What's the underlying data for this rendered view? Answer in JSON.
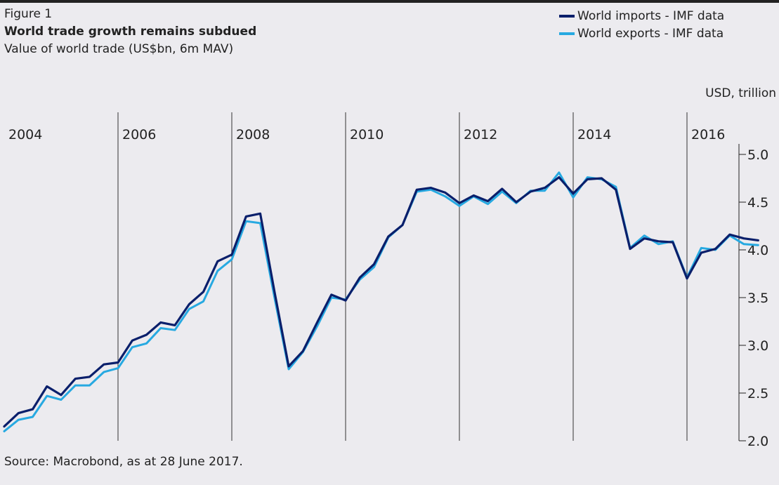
{
  "figure_label": "Figure 1",
  "title": "World trade growth remains subdued",
  "subtitle": "Value of world trade (US$bn, 6m MAV)",
  "unit_label": "USD, trillion",
  "source": "Source: Macrobond, as at 28 June 2017.",
  "colors": {
    "background": "#ecebef",
    "imports": "#0a1f6b",
    "exports": "#27a9e1",
    "gridline": "#333333"
  },
  "chart_data": {
    "type": "line",
    "title": "World trade growth remains subdued",
    "subtitle": "Value of world trade (US$bn, 6m MAV)",
    "ylabel": "USD, trillion",
    "ylim": [
      2.0,
      5.0
    ],
    "yticks": [
      "2.0",
      "2.5",
      "3.0",
      "3.5",
      "4.0",
      "4.5",
      "5.0"
    ],
    "xlim": [
      "2004-01",
      "2017-06"
    ],
    "year_labels": [
      "2004",
      "2006",
      "2008",
      "2010",
      "2012",
      "2014",
      "2016"
    ],
    "legend_position": "top-right",
    "grid": "vertical lines at every second year",
    "series": [
      {
        "name": "World imports - IMF data",
        "color": "#0a1f6b",
        "x": [
          "2004-01",
          "2004-04",
          "2004-07",
          "2004-10",
          "2005-01",
          "2005-04",
          "2005-07",
          "2005-10",
          "2006-01",
          "2006-04",
          "2006-07",
          "2006-10",
          "2007-01",
          "2007-04",
          "2007-07",
          "2007-10",
          "2008-01",
          "2008-04",
          "2008-07",
          "2008-10",
          "2009-01",
          "2009-04",
          "2009-07",
          "2009-10",
          "2010-01",
          "2010-04",
          "2010-07",
          "2010-10",
          "2011-01",
          "2011-04",
          "2011-07",
          "2011-10",
          "2012-01",
          "2012-04",
          "2012-07",
          "2012-10",
          "2013-01",
          "2013-04",
          "2013-07",
          "2013-10",
          "2014-01",
          "2014-04",
          "2014-07",
          "2014-10",
          "2015-01",
          "2015-04",
          "2015-07",
          "2015-10",
          "2016-01",
          "2016-04",
          "2016-07",
          "2016-10",
          "2017-01",
          "2017-04"
        ],
        "values": [
          2.15,
          2.29,
          2.33,
          2.57,
          2.48,
          2.65,
          2.67,
          2.8,
          2.82,
          3.05,
          3.11,
          3.24,
          3.21,
          3.43,
          3.56,
          3.88,
          3.95,
          4.35,
          4.38,
          3.56,
          2.78,
          2.94,
          3.24,
          3.53,
          3.47,
          3.71,
          3.85,
          4.14,
          4.26,
          4.63,
          4.65,
          4.6,
          4.49,
          4.57,
          4.51,
          4.64,
          4.5,
          4.61,
          4.65,
          4.76,
          4.59,
          4.74,
          4.75,
          4.63,
          4.01,
          4.12,
          4.09,
          4.08,
          3.7,
          3.97,
          4.01,
          4.16,
          4.12,
          4.1
        ]
      },
      {
        "name": "World exports - IMF data",
        "color": "#27a9e1",
        "x": [
          "2004-01",
          "2004-04",
          "2004-07",
          "2004-10",
          "2005-01",
          "2005-04",
          "2005-07",
          "2005-10",
          "2006-01",
          "2006-04",
          "2006-07",
          "2006-10",
          "2007-01",
          "2007-04",
          "2007-07",
          "2007-10",
          "2008-01",
          "2008-04",
          "2008-07",
          "2008-10",
          "2009-01",
          "2009-04",
          "2009-07",
          "2009-10",
          "2010-01",
          "2010-04",
          "2010-07",
          "2010-10",
          "2011-01",
          "2011-04",
          "2011-07",
          "2011-10",
          "2012-01",
          "2012-04",
          "2012-07",
          "2012-10",
          "2013-01",
          "2013-04",
          "2013-07",
          "2013-10",
          "2014-01",
          "2014-04",
          "2014-07",
          "2014-10",
          "2015-01",
          "2015-04",
          "2015-07",
          "2015-10",
          "2016-01",
          "2016-04",
          "2016-07",
          "2016-10",
          "2017-01",
          "2017-04"
        ],
        "values": [
          2.1,
          2.22,
          2.25,
          2.47,
          2.43,
          2.58,
          2.58,
          2.72,
          2.76,
          2.98,
          3.02,
          3.18,
          3.16,
          3.38,
          3.46,
          3.78,
          3.9,
          4.3,
          4.28,
          3.5,
          2.75,
          2.93,
          3.2,
          3.5,
          3.48,
          3.69,
          3.82,
          4.13,
          4.26,
          4.61,
          4.63,
          4.56,
          4.46,
          4.56,
          4.48,
          4.61,
          4.49,
          4.62,
          4.62,
          4.81,
          4.55,
          4.76,
          4.74,
          4.66,
          4.02,
          4.15,
          4.06,
          4.09,
          3.71,
          4.02,
          4.0,
          4.15,
          4.06,
          4.05
        ]
      }
    ]
  }
}
